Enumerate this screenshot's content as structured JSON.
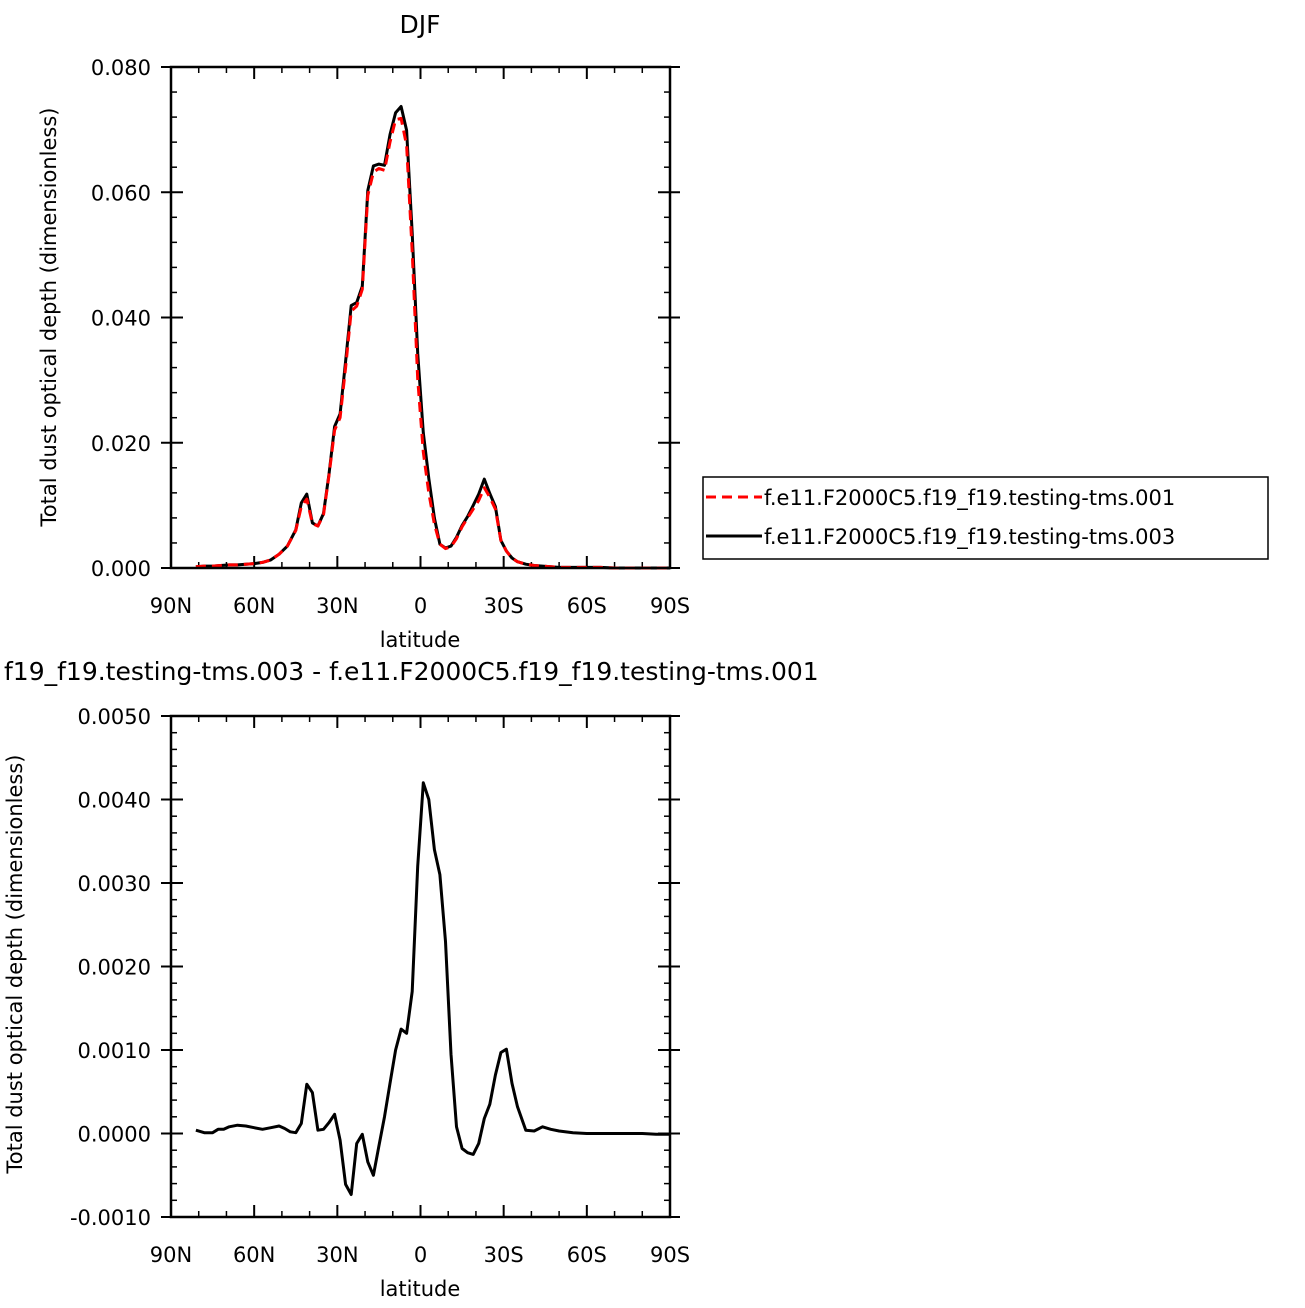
{
  "colors": {
    "series_001": "#ff0000",
    "series_003": "#000000",
    "axis": "#000000"
  },
  "chart_data": [
    {
      "type": "line",
      "title": "DJF",
      "xlabel": "latitude",
      "ylabel": "Total dust optical depth (dimensionless)",
      "xlim": [
        -90,
        90
      ],
      "ylim": [
        0,
        0.08
      ],
      "x_tick_labels": [
        "90N",
        "60N",
        "30N",
        "0",
        "30S",
        "60S",
        "90S"
      ],
      "y_tick_labels": [
        "0.000",
        "0.020",
        "0.040",
        "0.060",
        "0.080"
      ],
      "legend": {
        "placement": "right",
        "entries": [
          "f.e11.F2000C5.f19_f19.testing-tms.001",
          "f.e11.F2000C5.f19_f19.testing-tms.003"
        ]
      },
      "x": [
        -81,
        -78,
        -75,
        -72,
        -69,
        -66,
        -63,
        -60,
        -57,
        -54,
        -51,
        -48,
        -45,
        -43,
        -41,
        -39,
        -37,
        -35,
        -33,
        -31,
        -29,
        -27,
        -25,
        -23,
        -21,
        -19,
        -17,
        -15,
        -13,
        -11,
        -9,
        -7,
        -5,
        -3,
        -1,
        1,
        3,
        5,
        7,
        9,
        11,
        13,
        15,
        17,
        19,
        21,
        23,
        25,
        27,
        29,
        31,
        33,
        35,
        38,
        41,
        44,
        47,
        50,
        55,
        60,
        65,
        70,
        75,
        80,
        85,
        90
      ],
      "series": [
        {
          "name": "f.e11.F2000C5.f19_f19.testing-tms.001",
          "style": "dashed",
          "values": [
            0.0002,
            0.0003,
            0.0003,
            0.0004,
            0.0005,
            0.0005,
            0.0006,
            0.0007,
            0.0009,
            0.0013,
            0.0022,
            0.0035,
            0.006,
            0.0098,
            0.011,
            0.0071,
            0.0067,
            0.0085,
            0.0148,
            0.022,
            0.024,
            0.032,
            0.041,
            0.0418,
            0.0445,
            0.0595,
            0.0632,
            0.0638,
            0.0635,
            0.068,
            0.0716,
            0.0718,
            0.0675,
            0.0505,
            0.0302,
            0.0185,
            0.012,
            0.007,
            0.0038,
            0.0031,
            0.0034,
            0.0047,
            0.0066,
            0.008,
            0.0094,
            0.0108,
            0.0128,
            0.0113,
            0.0094,
            0.0044,
            0.0027,
            0.0016,
            0.001,
            0.0006,
            0.0004,
            0.0003,
            0.0002,
            0.0001,
            0.0001,
            0.0001,
            0.0001,
            0,
            0,
            0,
            0,
            0
          ]
        },
        {
          "name": "f.e11.F2000C5.f19_f19.testing-tms.003",
          "style": "solid",
          "values": [
            0.0002,
            0.0003,
            0.0003,
            0.0004,
            0.0005,
            0.0005,
            0.0006,
            0.0007,
            0.0009,
            0.0013,
            0.0022,
            0.0035,
            0.0061,
            0.0104,
            0.0118,
            0.0072,
            0.0067,
            0.0087,
            0.015,
            0.0226,
            0.0246,
            0.033,
            0.0419,
            0.0424,
            0.045,
            0.0603,
            0.0642,
            0.0645,
            0.0643,
            0.0692,
            0.0727,
            0.0737,
            0.0699,
            0.0535,
            0.0343,
            0.0216,
            0.0143,
            0.008,
            0.0038,
            0.0032,
            0.0035,
            0.0049,
            0.0068,
            0.0082,
            0.01,
            0.0118,
            0.0142,
            0.0119,
            0.0098,
            0.0044,
            0.0027,
            0.0016,
            0.001,
            0.0006,
            0.0004,
            0.0003,
            0.0002,
            0.0001,
            0.0001,
            0.0001,
            0.0001,
            0,
            0,
            0,
            0,
            0
          ]
        }
      ]
    },
    {
      "type": "line",
      "title": "f19_f19.testing-tms.003 - f.e11.F2000C5.f19_f19.testing-tms.001",
      "xlabel": "latitude",
      "ylabel": "Total dust optical depth (dimensionless)",
      "xlim": [
        -90,
        90
      ],
      "ylim": [
        -0.001,
        0.005
      ],
      "x_tick_labels": [
        "90N",
        "60N",
        "30N",
        "0",
        "30S",
        "60S",
        "90S"
      ],
      "y_tick_labels": [
        "-0.0010",
        "0.0000",
        "0.0010",
        "0.0020",
        "0.0030",
        "0.0040",
        "0.0050"
      ],
      "x": [
        -81,
        -78,
        -75,
        -73,
        -71,
        -69,
        -66,
        -63,
        -60,
        -57,
        -54,
        -51,
        -49,
        -47,
        -45,
        -43,
        -41,
        -39,
        -37,
        -35,
        -33,
        -31,
        -29,
        -27,
        -25,
        -23,
        -21,
        -19,
        -17,
        -15,
        -13,
        -11,
        -9,
        -7,
        -5,
        -3,
        -1,
        1,
        3,
        5,
        7,
        9,
        11,
        13,
        15,
        17,
        19,
        21,
        23,
        25,
        27,
        29,
        31,
        33,
        35,
        38,
        41,
        44,
        47,
        50,
        55,
        60,
        65,
        70,
        75,
        80,
        85,
        90
      ],
      "series": [
        {
          "name": "",
          "style": "solid",
          "values": [
            4e-05,
            1e-05,
            1e-05,
            5e-05,
            5e-05,
            8e-05,
            0.0001,
            9e-05,
            7e-05,
            5e-05,
            7e-05,
            9e-05,
            6e-05,
            2e-05,
            1e-05,
            0.00012,
            0.00059,
            0.00049,
            4e-05,
            5e-05,
            0.00013,
            0.00023,
            -8e-05,
            -0.00061,
            -0.00073,
            -0.00012,
            -1e-05,
            -0.00034,
            -0.0005,
            -0.00015,
            0.0002,
            0.0006,
            0.001,
            0.00125,
            0.0012,
            0.0017,
            0.0032,
            0.0042,
            0.004,
            0.0034,
            0.0031,
            0.0023,
            0.00095,
            8e-05,
            -0.00018,
            -0.00023,
            -0.00025,
            -0.00012,
            0.00018,
            0.00035,
            0.0007,
            0.00097,
            0.00101,
            0.0006,
            0.00032,
            4e-05,
            3e-05,
            8e-05,
            5e-05,
            3e-05,
            1e-05,
            0,
            0,
            0,
            0,
            0,
            -1e-05,
            -1e-05
          ]
        }
      ]
    }
  ]
}
